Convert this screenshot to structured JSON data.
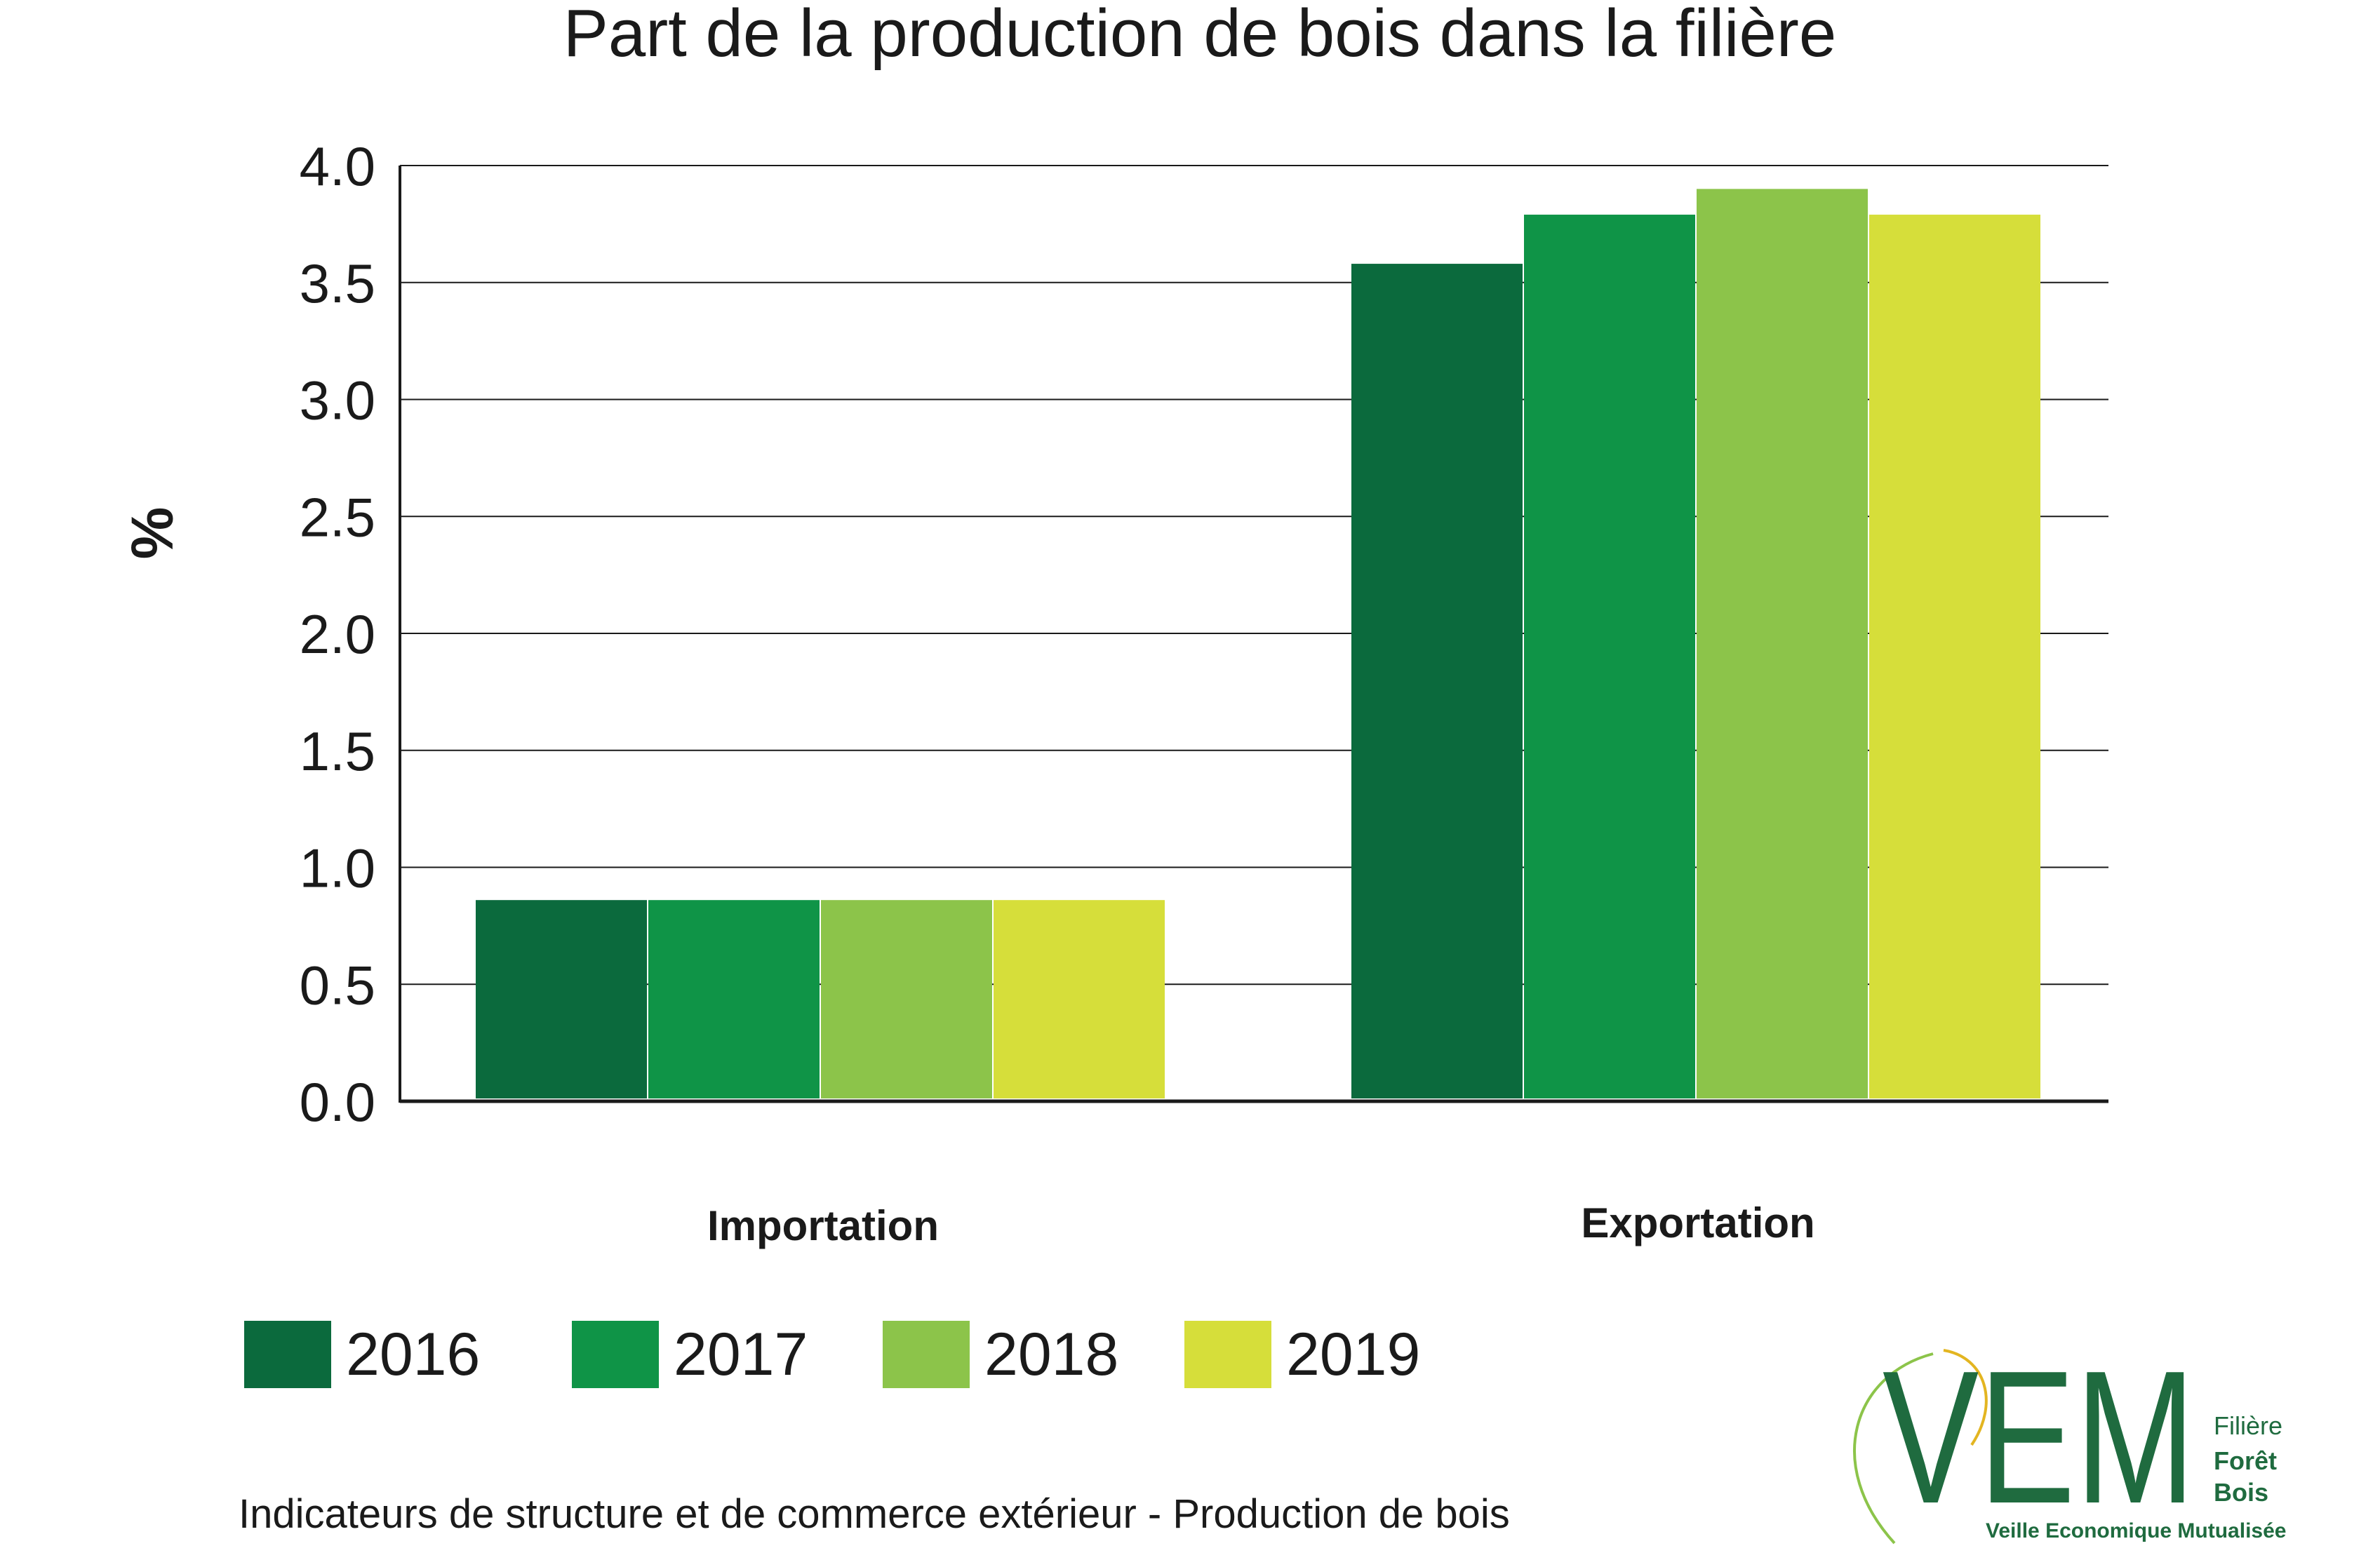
{
  "chart_data": {
    "type": "bar",
    "title": "Part de la production de bois dans la filière",
    "xlabel": "",
    "ylabel": "%",
    "categories": [
      "Importation",
      "Exportation"
    ],
    "ylim": [
      0,
      4.0
    ],
    "yticks": [
      "0.0",
      "0.5",
      "1.0",
      "1.5",
      "2.0",
      "2.5",
      "3.0",
      "3.5",
      "4.0"
    ],
    "grid": true,
    "legend_position": "bottom",
    "series": [
      {
        "name": "2016",
        "color": "#0b6a3d",
        "values": [
          0.86,
          3.58
        ]
      },
      {
        "name": "2017",
        "color": "#0f9447",
        "values": [
          0.86,
          3.79
        ]
      },
      {
        "name": "2018",
        "color": "#8cc44a",
        "values": [
          0.86,
          3.9
        ]
      },
      {
        "name": "2019",
        "color": "#d6de3a",
        "values": [
          0.86,
          3.79
        ]
      }
    ]
  },
  "footer": {
    "caption": "Indicateurs de structure et de commerce extérieur - Production de bois"
  },
  "logo": {
    "letters": "VEM",
    "line1": "Filière",
    "line2": "Forêt",
    "line3": "Bois",
    "tagline": "Veille Economique Mutualisée"
  }
}
